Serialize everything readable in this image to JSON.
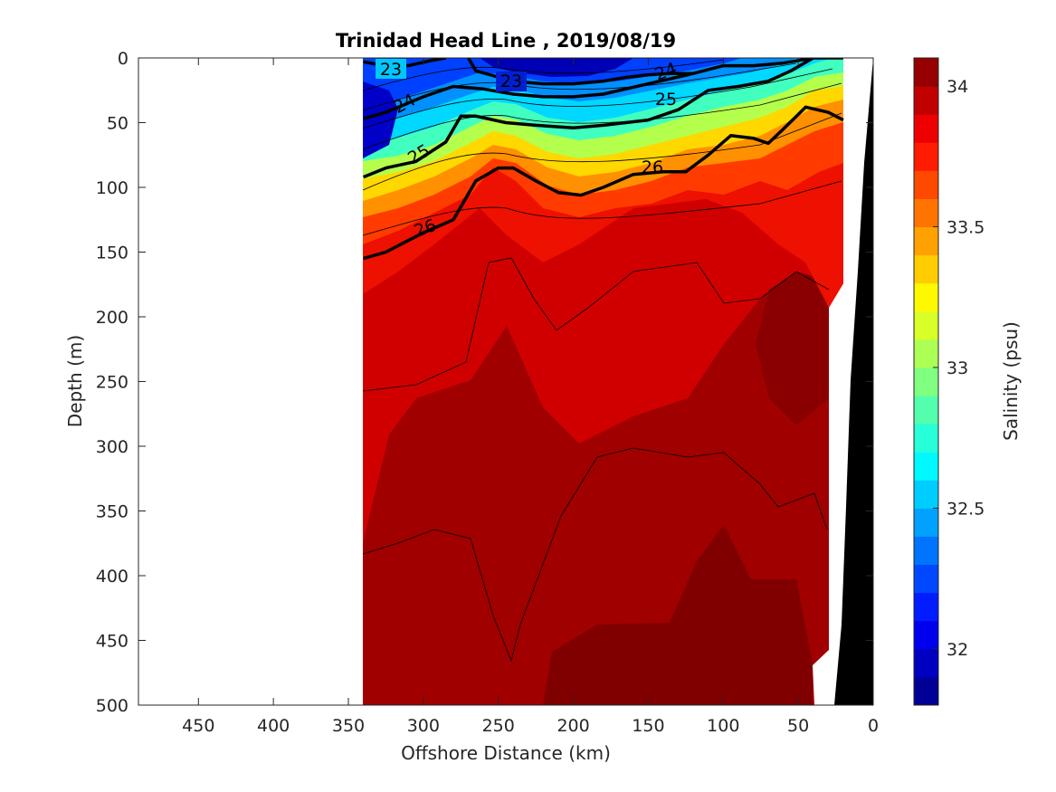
{
  "chart_data": {
    "type": "heatmap",
    "title": "Trinidad Head Line , 2019/08/19",
    "xlabel": "Offshore Distance (km)",
    "ylabel": "Depth (m)",
    "colorbar_label": "Salinity (psu)",
    "xlim": [
      490,
      0
    ],
    "ylim": [
      500,
      0
    ],
    "x_reversed": true,
    "y_reversed": true,
    "x_ticks": [
      450,
      400,
      350,
      300,
      250,
      200,
      150,
      100,
      50,
      0
    ],
    "y_ticks": [
      0,
      50,
      100,
      150,
      200,
      250,
      300,
      350,
      400,
      450,
      500
    ],
    "colorbar_range": [
      31.8,
      34.1
    ],
    "colorbar_ticks": [
      32,
      32.5,
      33,
      33.5,
      34
    ],
    "colorbar_step": 0.1,
    "colormap": "jet",
    "data_extent_km": [
      340,
      20
    ],
    "density_contours": [
      {
        "label": "23",
        "points": [
          [
            340,
            3
          ],
          [
            325,
            6
          ],
          [
            310,
            6
          ],
          [
            295,
            2
          ],
          [
            285,
            0
          ]
        ]
      },
      {
        "label": "23",
        "points": [
          [
            270,
            0
          ],
          [
            265,
            10
          ],
          [
            240,
            18
          ],
          [
            220,
            20
          ],
          [
            200,
            20
          ],
          [
            180,
            18
          ],
          [
            165,
            15
          ],
          [
            150,
            13
          ],
          [
            135,
            12
          ],
          [
            120,
            12
          ]
        ]
      },
      {
        "label": "24",
        "points": [
          [
            340,
            47
          ],
          [
            325,
            42
          ],
          [
            300,
            30
          ],
          [
            280,
            22
          ],
          [
            260,
            24
          ],
          [
            240,
            28
          ],
          [
            220,
            30
          ],
          [
            200,
            30
          ],
          [
            180,
            28
          ],
          [
            150,
            20
          ],
          [
            120,
            12
          ],
          [
            100,
            6
          ],
          [
            80,
            6
          ],
          [
            60,
            4
          ],
          [
            40,
            0
          ]
        ]
      },
      {
        "label": "25",
        "points": [
          [
            340,
            92
          ],
          [
            325,
            85
          ],
          [
            305,
            80
          ],
          [
            285,
            65
          ],
          [
            275,
            45
          ],
          [
            265,
            45
          ],
          [
            245,
            50
          ],
          [
            225,
            52
          ],
          [
            200,
            54
          ],
          [
            180,
            52
          ],
          [
            150,
            48
          ],
          [
            130,
            40
          ],
          [
            110,
            25
          ],
          [
            90,
            22
          ],
          [
            70,
            18
          ],
          [
            55,
            10
          ],
          [
            40,
            0
          ],
          [
            20,
            0
          ]
        ]
      },
      {
        "label": "26",
        "points": [
          [
            340,
            155
          ],
          [
            325,
            150
          ],
          [
            300,
            135
          ],
          [
            280,
            125
          ],
          [
            265,
            95
          ],
          [
            250,
            85
          ],
          [
            240,
            85
          ],
          [
            225,
            95
          ],
          [
            210,
            104
          ],
          [
            195,
            106
          ],
          [
            180,
            100
          ],
          [
            160,
            90
          ],
          [
            140,
            88
          ],
          [
            125,
            88
          ],
          [
            110,
            75
          ],
          [
            95,
            60
          ],
          [
            80,
            62
          ],
          [
            70,
            66
          ],
          [
            60,
            55
          ],
          [
            45,
            38
          ],
          [
            30,
            42
          ],
          [
            20,
            48
          ]
        ]
      }
    ],
    "colorbar_labels": [
      "32",
      "32.5",
      "33",
      "33.5",
      "34"
    ]
  }
}
